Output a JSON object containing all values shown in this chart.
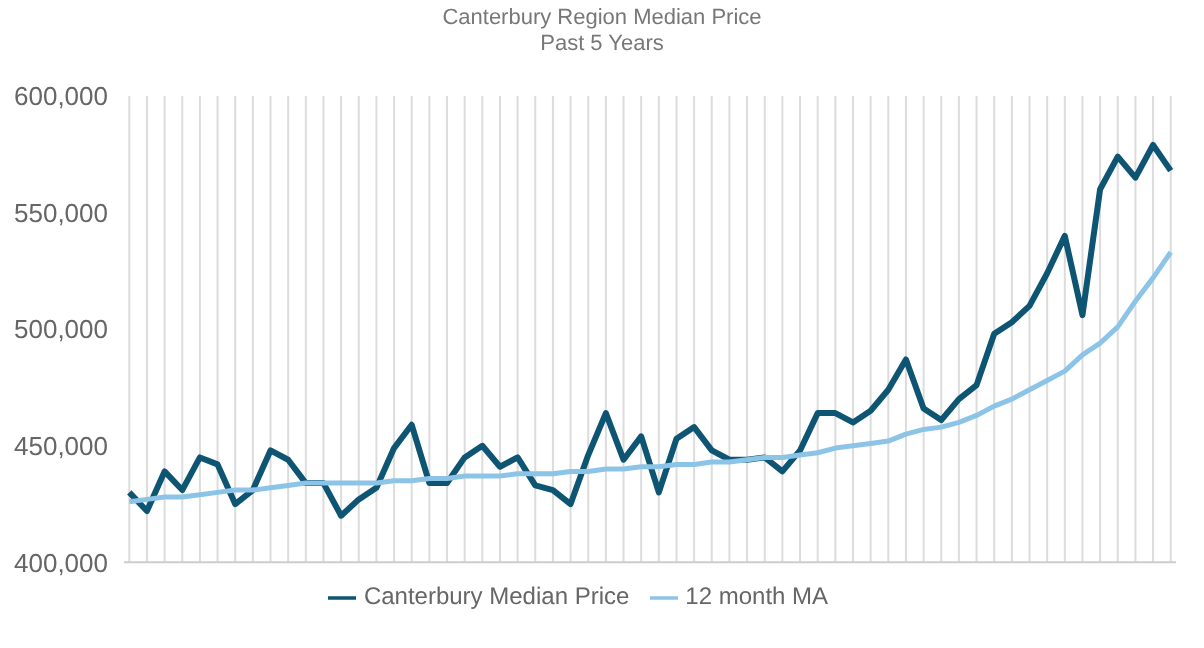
{
  "chart_data": {
    "type": "line",
    "title": "Canterbury Region Median Price",
    "subtitle": "Past 5 Years",
    "categories": [
      null,
      null,
      null,
      null,
      null,
      null,
      null,
      null,
      null,
      null,
      null,
      null,
      null,
      null,
      null,
      null,
      null,
      null,
      null,
      null,
      null,
      null,
      null,
      null,
      null,
      null,
      null,
      null,
      null,
      null,
      null,
      null,
      null,
      null,
      null,
      null,
      null,
      null,
      null,
      null,
      null,
      null,
      null,
      null,
      null,
      null,
      null,
      null,
      null,
      null,
      null,
      null,
      null,
      null,
      null,
      null,
      null,
      null,
      null,
      null
    ],
    "series": [
      {
        "name": "Canterbury Median Price",
        "color": "#0e5573",
        "values": [
          430000,
          422000,
          439000,
          431000,
          445000,
          442000,
          425000,
          431000,
          448000,
          444000,
          434000,
          434000,
          420000,
          427000,
          432000,
          449000,
          459000,
          434000,
          434000,
          445000,
          450000,
          441000,
          445000,
          433000,
          431000,
          425000,
          446000,
          464000,
          444000,
          454000,
          430000,
          453000,
          458000,
          448000,
          444000,
          444000,
          445000,
          439000,
          448000,
          464000,
          464000,
          460000,
          465000,
          474000,
          487000,
          466000,
          461000,
          470000,
          476000,
          498000,
          503000,
          510000,
          524000,
          540000,
          506000,
          560000,
          574000,
          565000,
          579000,
          568000
        ]
      },
      {
        "name": "12 month MA",
        "color": "#8cc4e8",
        "values": [
          426000,
          427000,
          428000,
          428000,
          429000,
          430000,
          431000,
          431000,
          432000,
          433000,
          434000,
          434000,
          434000,
          434000,
          434000,
          435000,
          435000,
          436000,
          436000,
          437000,
          437000,
          437000,
          438000,
          438000,
          438000,
          439000,
          439000,
          440000,
          440000,
          441000,
          441000,
          442000,
          442000,
          443000,
          443000,
          444000,
          445000,
          445000,
          446000,
          447000,
          449000,
          450000,
          451000,
          452000,
          455000,
          457000,
          458000,
          460000,
          463000,
          467000,
          470000,
          474000,
          478000,
          482000,
          489000,
          494000,
          501000,
          512000,
          522000,
          533000
        ]
      }
    ],
    "ylim": [
      400000,
      600000
    ],
    "yticks": [
      {
        "value": 400000,
        "label": "400,000"
      },
      {
        "value": 450000,
        "label": "450,000"
      },
      {
        "value": 500000,
        "label": "500,000"
      },
      {
        "value": 550000,
        "label": "550,000"
      },
      {
        "value": 600000,
        "label": "600,000"
      }
    ],
    "grid": "x",
    "legend": "bottom",
    "tick_labels": "y",
    "marker": "none",
    "line_style": "solid"
  }
}
